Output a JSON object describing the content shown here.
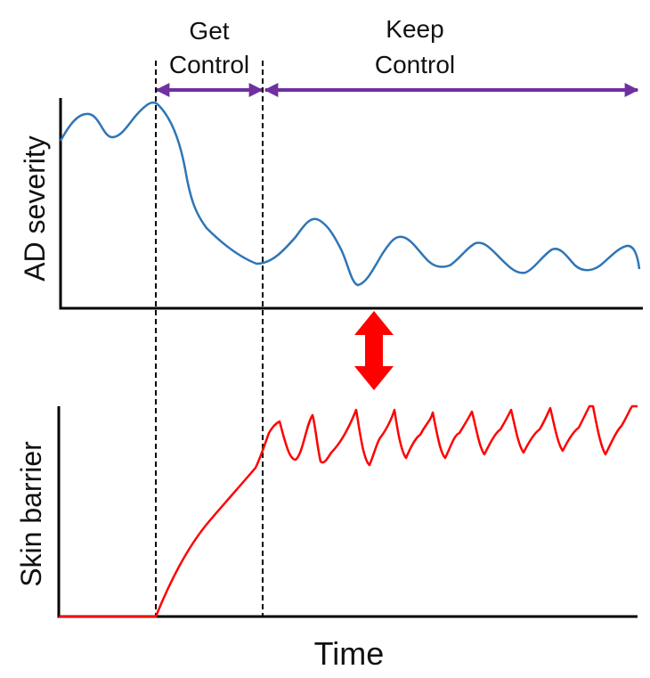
{
  "phases": [
    {
      "label_line1": "Get",
      "label_line2": "Control"
    },
    {
      "label_line1": "Keep",
      "label_line2": "Control"
    }
  ],
  "top_panel": {
    "ylabel": "AD severity"
  },
  "bottom_panel": {
    "ylabel": "Skin barrier"
  },
  "xlabel": "Time",
  "colors": {
    "severity_line": "#2e75b6",
    "barrier_line": "#ff0000",
    "phase_arrow": "#7030a0",
    "link_arrow": "#ff0000",
    "axis": "#000000"
  }
}
